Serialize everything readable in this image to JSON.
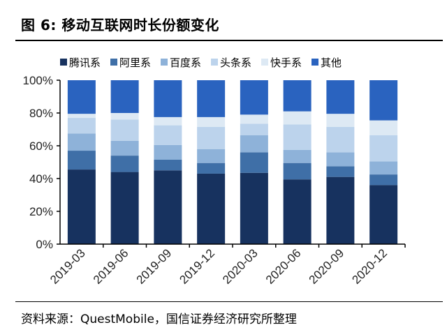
{
  "title": "图 6:  移动互联网时长份额变化",
  "source": "资料来源：QuestMobile，国信证券经济研究所整理",
  "chart_data": {
    "type": "bar",
    "stacked": true,
    "categories": [
      "2019-03",
      "2019-06",
      "2019-09",
      "2019-12",
      "2020-03",
      "2020-06",
      "2020-09",
      "2020-12"
    ],
    "y_ticks": [
      "0%",
      "20%",
      "40%",
      "60%",
      "80%",
      "100%"
    ],
    "ylim": [
      0,
      100
    ],
    "legend_position": "top",
    "series": [
      {
        "name": "腾讯系",
        "color": "#17325f",
        "values": [
          45.5,
          44,
          45,
          43,
          43.5,
          39.5,
          41,
          36
        ]
      },
      {
        "name": "阿里系",
        "color": "#3f6fa7",
        "values": [
          11.5,
          10,
          6.5,
          6.5,
          12.5,
          10,
          6.5,
          6.5
        ]
      },
      {
        "name": "百度系",
        "color": "#8eb2d9",
        "values": [
          10.5,
          9,
          9,
          8.5,
          10.5,
          8,
          8.5,
          8
        ]
      },
      {
        "name": "头条系",
        "color": "#bcd3ec",
        "values": [
          9.5,
          13,
          12,
          13.5,
          7,
          15.5,
          15.5,
          16
        ]
      },
      {
        "name": "快手系",
        "color": "#dde9f4",
        "values": [
          2.5,
          4,
          5,
          6,
          5.5,
          8,
          8,
          9
        ]
      },
      {
        "name": "其他",
        "color": "#2a63bf",
        "values": [
          20.5,
          20,
          22.5,
          22.5,
          21,
          19,
          20.5,
          24.5
        ]
      }
    ]
  }
}
